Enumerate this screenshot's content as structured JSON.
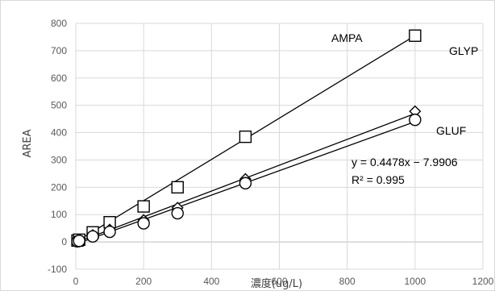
{
  "chart_data": {
    "type": "scatter",
    "xlabel": "濃度(ug/L)",
    "ylabel": "AREA",
    "xlim": [
      0,
      1200
    ],
    "ylim": [
      -100,
      800
    ],
    "x_ticks": [
      0,
      200,
      400,
      600,
      800,
      1000,
      1200
    ],
    "y_ticks": [
      -100,
      0,
      100,
      200,
      300,
      400,
      500,
      600,
      700,
      800
    ],
    "grid": true,
    "series": [
      {
        "name": "AMPA",
        "marker": "square",
        "x": [
          5,
          10,
          50,
          100,
          200,
          300,
          500,
          1000
        ],
        "y": [
          5,
          8,
          35,
          72,
          130,
          200,
          385,
          755
        ],
        "trend": [
          [
            0,
            0
          ],
          [
            1000,
            755
          ]
        ]
      },
      {
        "name": "GLYP",
        "marker": "diamond",
        "x": [
          5,
          10,
          50,
          100,
          200,
          300,
          500,
          1000
        ],
        "y": [
          3,
          6,
          25,
          45,
          80,
          125,
          230,
          478
        ],
        "trend": [
          [
            0,
            -3
          ],
          [
            1000,
            470
          ]
        ]
      },
      {
        "name": "GLUF",
        "marker": "circle",
        "x": [
          5,
          10,
          50,
          100,
          200,
          300,
          500,
          1000
        ],
        "y": [
          2,
          4,
          20,
          37,
          68,
          105,
          215,
          447
        ],
        "trend": [
          [
            0,
            -8
          ],
          [
            1000,
            440
          ]
        ]
      }
    ],
    "annotations": {
      "equation": "y = 0.4478x − 7.9906",
      "r2": "R² = 0.995"
    }
  }
}
